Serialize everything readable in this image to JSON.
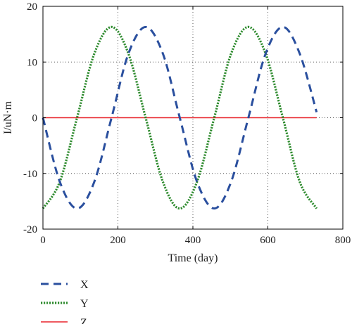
{
  "chart_data": {
    "type": "line",
    "xlabel": "Time (day)",
    "ylabel": "I/uN·m",
    "xlim": [
      0,
      800
    ],
    "ylim": [
      -20,
      20
    ],
    "xticks": [
      0,
      200,
      400,
      600,
      800
    ],
    "yticks": [
      -20,
      -10,
      0,
      10,
      20
    ],
    "grid": "dotted",
    "legend_position": "bottom-left",
    "colors": {
      "X": "#2a4f9e",
      "Y": "#2e8b2e",
      "Z": "#e8242b"
    },
    "series": [
      {
        "name": "X",
        "style": "dashed",
        "x": [
          0,
          45,
          91,
          137,
          183,
          228,
          274,
          320,
          365,
          411,
          457,
          502,
          548,
          594,
          640,
          685,
          730
        ],
        "y": [
          0,
          -11.5,
          -16.3,
          -11.5,
          0,
          11.5,
          16.3,
          11.5,
          0,
          -11.5,
          -16.3,
          -11.5,
          0,
          11.5,
          16.3,
          11.5,
          1
        ]
      },
      {
        "name": "Y",
        "style": "dotted",
        "x": [
          0,
          45,
          91,
          137,
          183,
          228,
          274,
          320,
          365,
          411,
          457,
          502,
          548,
          594,
          640,
          685,
          730
        ],
        "y": [
          -16.3,
          -11.5,
          0,
          11.5,
          16.3,
          11.5,
          0,
          -11.5,
          -16.3,
          -11.5,
          0,
          11.5,
          16.3,
          11.5,
          0,
          -11.5,
          -16.3
        ]
      },
      {
        "name": "Z",
        "style": "solid",
        "x": [
          0,
          730
        ],
        "y": [
          0,
          0
        ]
      }
    ]
  }
}
